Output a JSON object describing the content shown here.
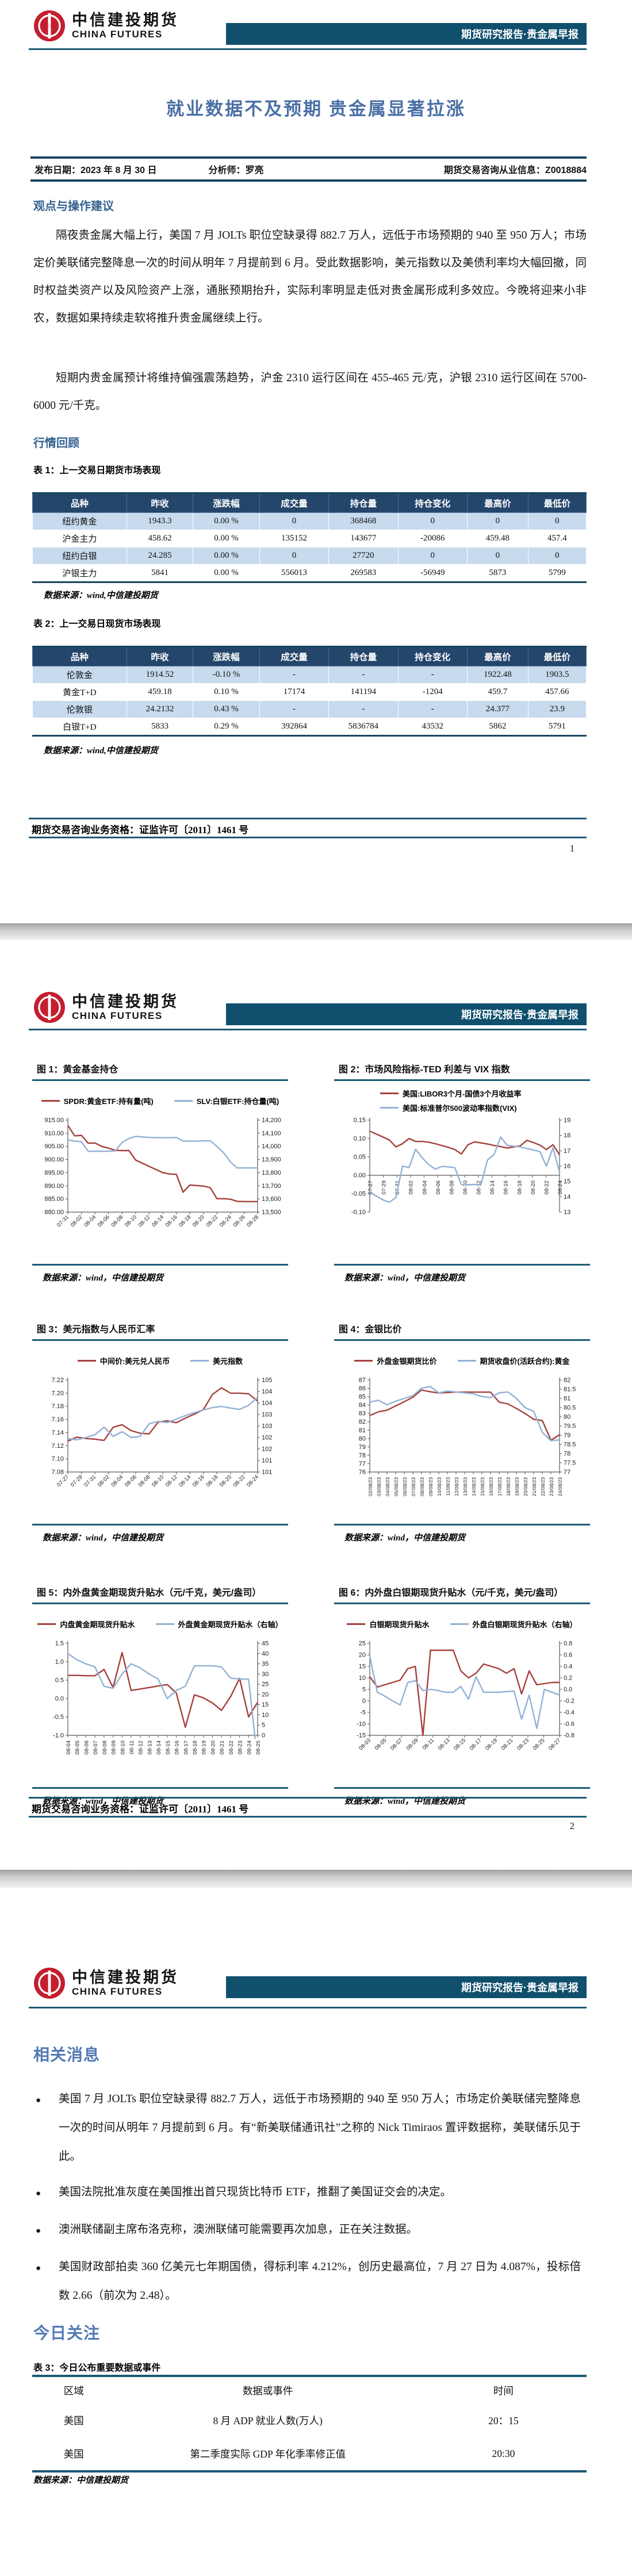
{
  "brand": {
    "name_cn": "中信建投期货",
    "name_en": "CHINA FUTURES",
    "banner": "期货研究报告·贵金属早报"
  },
  "colors": {
    "banner_bg": "#10506d",
    "rule_teal": "#1b5a75",
    "table_header_navy": "#24466b",
    "table_row_blue": "#c7daee",
    "title_blue": "#4a6fa5",
    "heading_blue": "#33618f",
    "page3_heading_blue": "#5279b3",
    "chart_red": "#a5403c",
    "chart_blue": "#92b1d5",
    "logo_red": "#c41e2f"
  },
  "page1": {
    "title": "就业数据不及预期 贵金属显著拉涨",
    "publish_date": "发布日期：2023 年 8 月 30 日",
    "analyst": "分析师：罗亮",
    "qualification": "期货交易咨询从业信息：Z0018884",
    "section_viewpoint": "观点与操作建议",
    "paragraph1": "隔夜贵金属大幅上行，美国 7 月 JOLTs 职位空缺录得 882.7 万人，远低于市场预期的 940 至 950 万人；市场定价美联储完整降息一次的时间从明年 7 月提前到 6 月。受此数据影响，美元指数以及美债利率均大幅回撤，同时权益类资产以及风险资产上涨，通胀预期抬升，实际利率明显走低对贵金属形成利多效应。今晚将迎来小非农，数据如果持续走软将推升贵金属继续上行。",
    "paragraph2": "短期内贵金属预计将维持偏强震荡趋势，沪金 2310 运行区间在 455-465 元/克，沪银 2310 运行区间在 5700-6000 元/千克。",
    "section_review": "行情回顾",
    "table1": {
      "caption": "表 1：上一交易日期货市场表现",
      "headers": [
        "品种",
        "昨收",
        "涨跌幅",
        "成交量",
        "持仓量",
        "持仓变化",
        "最高价",
        "最低价"
      ],
      "rows": [
        [
          "纽约黄金",
          "1943.3",
          "0.00 %",
          "0",
          "368468",
          "0",
          "0",
          "0"
        ],
        [
          "沪金主力",
          "458.62",
          "0.00 %",
          "135152",
          "143677",
          "-20086",
          "459.48",
          "457.4"
        ],
        [
          "纽约白银",
          "24.285",
          "0.00 %",
          "0",
          "27720",
          "0",
          "0",
          "0"
        ],
        [
          "沪银主力",
          "5841",
          "0.00 %",
          "556013",
          "269583",
          "-56949",
          "5873",
          "5799"
        ]
      ]
    },
    "table1_source": "数据来源：wind,中信建投期货",
    "table2": {
      "caption": "表 2：上一交易日现货市场表现",
      "headers": [
        "品种",
        "昨收",
        "涨跌幅",
        "成交量",
        "持仓量",
        "持仓变化",
        "最高价",
        "最低价"
      ],
      "rows": [
        [
          "伦敦金",
          "1914.52",
          "-0.10 %",
          "-",
          "-",
          "-",
          "1922.48",
          "1903.5"
        ],
        [
          "黄金T+D",
          "459.18",
          "0.10 %",
          "17174",
          "141194",
          "-1204",
          "459.7",
          "457.66"
        ],
        [
          "伦敦银",
          "24.2132",
          "0.43 %",
          "-",
          "-",
          "-",
          "24.377",
          "23.9"
        ],
        [
          "白银T+D",
          "5833",
          "0.29 %",
          "392864",
          "5836784",
          "43532",
          "5862",
          "5791"
        ]
      ]
    },
    "table2_source": "数据来源：wind,中信建投期货",
    "footer_license": "期货交易咨询业务资格：证监许可〔2011〕1461 号",
    "page_number": "1"
  },
  "page2": {
    "footer_license": "期货交易咨询业务资格：证监许可〔2011〕1461 号",
    "page_number": "2"
  },
  "page3": {
    "section_news": "相关消息",
    "bullets": [
      "美国 7 月 JOLTs 职位空缺录得 882.7 万人，远低于市场预期的 940 至 950 万人；市场定价美联储完整降息一次的时间从明年 7 月提前到 6 月。有“新美联储通讯社”之称的 Nick Timiraos 置评数据称，美联储乐见于此。",
      "美国法院批准灰度在美国推出首只现货比特币 ETF，推翻了美国证交会的决定。",
      "澳洲联储副主席布洛克称，澳洲联储可能需要再次加息，正在关注数据。",
      "美国财政部拍卖 360 亿美元七年期国债，得标利率 4.212%，创历史最高位，7 月 27 日为 4.087%，投标倍数 2.66（前次为 2.48）。"
    ],
    "section_focus": "今日关注",
    "table3": {
      "caption": "表 3：今日公布重要数据或事件",
      "headers": [
        "区域",
        "数据或事件",
        "时间"
      ],
      "rows": [
        [
          "美国",
          "8 月 ADP 就业人数(万人)",
          "20：15"
        ],
        [
          "美国",
          "第二季度实际 GDP 年化季率修正值",
          "20:30"
        ]
      ]
    },
    "table3_source": "数据来源：中信建投期货"
  },
  "chart_data": [
    {
      "type": "line",
      "title": "图 1：黄金基金持仓",
      "source": "数据来源：wind，中信建投期货",
      "x_rotate": -45,
      "x_labels": [
        "07-31",
        "08-02",
        "08-04",
        "08-06",
        "08-08",
        "08-10",
        "08-12",
        "08-14",
        "08-16",
        "08-18",
        "08-20",
        "08-22",
        "08-24",
        "08-26",
        "08-28"
      ],
      "left_axis": {
        "min": 880,
        "max": 915,
        "labels": [
          "915.00",
          "910.00",
          "905.00",
          "900.00",
          "895.00",
          "890.00",
          "885.00",
          "880.00"
        ]
      },
      "right_axis": {
        "min": 13500,
        "max": 14200,
        "labels": [
          "14,200",
          "14,100",
          "14,000",
          "13,900",
          "13,800",
          "13,700",
          "13,600",
          "13,500"
        ]
      },
      "series": [
        {
          "name": "SPDR:黄金ETF:持有量(吨)",
          "axis": "left",
          "color": "#a5403c",
          "values": [
            913.0,
            909.0,
            909.2,
            906.2,
            906.3,
            905.0,
            904.3,
            903.5,
            903.4,
            903.4,
            899.8,
            898.6,
            897.4,
            896.2,
            895.0,
            894.5,
            894.4,
            887.6,
            890.3,
            890.1,
            889.9,
            889.3,
            885.1,
            885.1,
            884.9,
            884.1,
            884.0,
            884.0,
            884.0
          ]
        },
        {
          "name": "SLV:白银ETF:持仓量(吨)",
          "axis": "right",
          "color": "#92b1d5",
          "values": [
            14050,
            14040,
            14035,
            13963,
            13963,
            13963,
            13963,
            13966,
            14030,
            14060,
            14076,
            14072,
            14068,
            14066,
            14066,
            14066,
            14068,
            14040,
            14040,
            14040,
            14042,
            14042,
            14000,
            13950,
            13880,
            13836,
            13836,
            13836,
            13836
          ]
        }
      ]
    },
    {
      "type": "line",
      "title": "图 2：市场风险指标-TED 利差与 VIX 指数",
      "source": "数据来源：wind，中信建投期货",
      "legend_stacked": true,
      "x_rotate": -90,
      "x_axis_at": 0,
      "x_labels": [
        "07-27",
        "07-29",
        "07-31",
        "08-02",
        "08-04",
        "08-06",
        "08-08",
        "08-10",
        "08-12",
        "08-14",
        "08-16",
        "08-18",
        "08-20",
        "08-22",
        "08-24"
      ],
      "left_axis": {
        "min": -0.1,
        "max": 0.15,
        "labels": [
          "0.15",
          "0.10",
          "0.05",
          "0.00",
          "-0.05",
          "-0.10"
        ]
      },
      "right_axis": {
        "min": 13,
        "max": 19,
        "labels": [
          "19",
          "18",
          "17",
          "16",
          "15",
          "14",
          "13"
        ]
      },
      "series": [
        {
          "name": "美国:LIBOR3个月-国债3个月收益率",
          "axis": "left",
          "color": "#a5403c",
          "values": [
            0.12,
            0.112,
            0.104,
            0.096,
            0.077,
            0.086,
            0.1,
            0.092,
            0.092,
            0.09,
            0.086,
            0.081,
            0.076,
            0.07,
            0.058,
            0.083,
            0.091,
            0.088,
            0.085,
            0.081,
            0.078,
            0.074,
            0.077,
            0.08,
            0.095,
            0.089,
            0.082,
            0.07,
            0.083,
            0.056
          ]
        },
        {
          "name": "美国:标准普尔500波动率指数(VIX)",
          "axis": "right",
          "color": "#92b1d5",
          "values": [
            14.3,
            14.05,
            13.8,
            13.65,
            13.95,
            16.0,
            15.9,
            17.1,
            16.55,
            16.1,
            15.8,
            15.98,
            15.95,
            15.9,
            14.8,
            14.78,
            14.8,
            14.8,
            16.4,
            16.75,
            17.9,
            17.35,
            17.3,
            17.25,
            17.15,
            17.05,
            16.95,
            16.0,
            17.2,
            15.6
          ]
        }
      ]
    },
    {
      "type": "line",
      "title": "图 3：美元指数与人民币汇率",
      "source": "数据来源：wind，中信建投期货",
      "x_rotate": -45,
      "x_labels": [
        "07-27",
        "07-29",
        "07-31",
        "08-02",
        "08-04",
        "08-06",
        "08-08",
        "08-10",
        "08-12",
        "08-14",
        "08-16",
        "08-18",
        "08-20",
        "08-22",
        "08-24"
      ],
      "left_axis": {
        "min": 7.08,
        "max": 7.22,
        "labels": [
          "7.22",
          "7.20",
          "7.18",
          "7.16",
          "7.14",
          "7.12",
          "7.10",
          "7.08"
        ]
      },
      "right_axis": {
        "min": 101,
        "max": 105,
        "labels": [
          "105",
          "104",
          "104",
          "103",
          "103",
          "102",
          "102",
          "101",
          "101"
        ]
      },
      "series": [
        {
          "name": "中间价:美元兑人民币",
          "axis": "left",
          "color": "#a5403c",
          "values": [
            7.127,
            7.133,
            7.131,
            7.13,
            7.128,
            7.148,
            7.152,
            7.143,
            7.139,
            7.138,
            7.156,
            7.158,
            7.155,
            7.162,
            7.168,
            7.175,
            7.198,
            7.208,
            7.2,
            7.2,
            7.199,
            7.188
          ]
        },
        {
          "name": "美元指数",
          "axis": "right",
          "color": "#92b1d5",
          "values": [
            102.45,
            102.4,
            102.5,
            102.62,
            102.95,
            102.55,
            102.75,
            102.5,
            102.55,
            103.1,
            103.2,
            103.15,
            103.3,
            103.45,
            103.58,
            103.7,
            103.8,
            103.85,
            103.78,
            103.72,
            103.9,
            104.25
          ]
        }
      ]
    },
    {
      "type": "line",
      "title": "图 4：金银比价",
      "source": "数据来源：wind，中信建投期货",
      "x_rotate": -90,
      "x_labels": [
        "02/08/23",
        "03/08/23",
        "04/08/23",
        "05/08/23",
        "06/08/23",
        "07/08/23",
        "08/08/23",
        "09/08/23",
        "10/08/23",
        "11/08/23",
        "12/08/23",
        "13/08/23",
        "14/08/23",
        "15/08/23",
        "16/08/23",
        "17/08/23",
        "18/08/23",
        "19/08/23",
        "20/08/23",
        "21/08/23",
        "22/08/23",
        "23/08/23",
        "24/08/23"
      ],
      "left_axis": {
        "min": 76,
        "max": 87,
        "labels": [
          "87",
          "86",
          "85",
          "84",
          "83",
          "82",
          "81",
          "80",
          "79",
          "78",
          "77",
          "76"
        ]
      },
      "right_axis": {
        "min": 77,
        "max": 82,
        "labels": [
          "82",
          "81.5",
          "81",
          "80.5",
          "80",
          "79.5",
          "79",
          "78.5",
          "78",
          "77.5",
          "77"
        ]
      },
      "series": [
        {
          "name": "外盘金银期货比价",
          "axis": "left",
          "color": "#a5403c",
          "values": [
            82.75,
            83.2,
            83.4,
            83.9,
            84.4,
            84.95,
            85.8,
            85.6,
            85.45,
            85.5,
            85.55,
            85.55,
            85.55,
            85.55,
            85.55,
            84.35,
            84.15,
            83.6,
            83.0,
            82.3,
            82.15,
            79.8,
            80.45
          ]
        },
        {
          "name": "期货收盘价(活跃合约):黄金",
          "axis": "right",
          "color": "#92b1d5",
          "values": [
            80.8,
            80.9,
            80.65,
            80.85,
            81.0,
            81.15,
            81.55,
            81.65,
            81.3,
            81.4,
            81.35,
            81.3,
            81.25,
            81.1,
            81.05,
            81.3,
            81.35,
            81.0,
            80.5,
            80.3,
            79.15,
            78.7,
            78.75
          ]
        }
      ]
    },
    {
      "type": "line",
      "title": "图 5：内外盘黄金期现货升贴水（元/千克，美元/盎司）",
      "source": "数据来源：wind，中信建投期货",
      "x_rotate": -90,
      "x_labels": [
        "08-04",
        "08-05",
        "08-06",
        "08-07",
        "08-08",
        "08-09",
        "08-10",
        "08-11",
        "08-12",
        "08-13",
        "08-14",
        "08-15",
        "08-16",
        "08-17",
        "08-18",
        "08-19",
        "08-20",
        "08-21",
        "08-22",
        "08-23",
        "08-24",
        "08-25"
      ],
      "left_axis": {
        "min": -1.0,
        "max": 1.5,
        "labels": [
          "1.5",
          "1.0",
          "0.5",
          "0.0",
          "-0.5",
          "-1.0"
        ]
      },
      "right_axis": {
        "min": 0,
        "max": 45,
        "labels": [
          "45",
          "40",
          "35",
          "30",
          "25",
          "20",
          "15",
          "10",
          "5",
          "0"
        ]
      },
      "series": [
        {
          "name": "内盘黄金期现货升贴水",
          "axis": "left",
          "color": "#a5403c",
          "values": [
            0.63,
            0.63,
            0.62,
            0.62,
            0.79,
            0.3,
            1.25,
            0.22,
            0.26,
            0.3,
            0.34,
            0.38,
            0.15,
            -0.78,
            0.1,
            0.02,
            -0.12,
            -0.32,
            0.05,
            0.55,
            -0.5,
            -0.1
          ]
        },
        {
          "name": "外盘黄金期现货升贴水（右轴）",
          "axis": "right",
          "color": "#92b1d5",
          "values": [
            40,
            37,
            35,
            33.5,
            24,
            23,
            30,
            35,
            33,
            30,
            27.5,
            18,
            22,
            24,
            34,
            34,
            34,
            33.5,
            28,
            27.5,
            27.5,
            -13
          ]
        }
      ]
    },
    {
      "type": "line",
      "title": "图 6：内外盘白银期现货升贴水（元/千克，美元/盎司）",
      "source": "数据来源：wind，中信建投期货",
      "x_rotate": -45,
      "x_labels": [
        "08-03",
        "08-05",
        "08-07",
        "08-09",
        "08-11",
        "08-13",
        "08-15",
        "08-17",
        "08-19",
        "08-21",
        "08-23",
        "08-25",
        "08-27"
      ],
      "left_axis": {
        "min": -15,
        "max": 25,
        "labels": [
          "25",
          "20",
          "15",
          "10",
          "5",
          "0",
          "-5",
          "-10",
          "-15"
        ]
      },
      "right_axis": {
        "min": -0.8,
        "max": 0.8,
        "labels": [
          "0.8",
          "0.6",
          "0.4",
          "0.2",
          "0.0",
          "-0.2",
          "-0.4",
          "-0.6",
          "-0.8"
        ]
      },
      "series": [
        {
          "name": "白银期现货升贴水",
          "axis": "left",
          "color": "#a5403c",
          "values": [
            10.5,
            6,
            7,
            8,
            9,
            14,
            15,
            -15,
            22,
            22,
            22,
            22,
            13,
            10,
            12,
            16,
            15,
            14,
            12,
            14,
            3,
            13,
            7,
            7.5,
            8,
            8
          ]
        },
        {
          "name": "外盘白银期现货升贴水（右轴）",
          "axis": "right",
          "color": "#92b1d5",
          "values": [
            0.58,
            -0.05,
            -0.12,
            -0.2,
            -0.27,
            0.12,
            0.15,
            -0.02,
            0.0,
            -0.02,
            -0.05,
            -0.05,
            0.05,
            -0.17,
            0.22,
            -0.05,
            -0.05,
            -0.05,
            -0.04,
            -0.03,
            -0.52,
            -0.1,
            -0.68,
            0.0,
            -0.05,
            -0.1
          ]
        }
      ]
    }
  ]
}
